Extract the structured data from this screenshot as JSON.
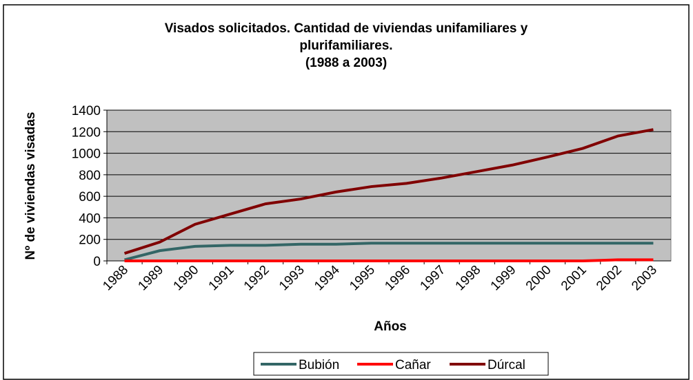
{
  "chart_data": {
    "type": "line",
    "title": [
      "Visados solicitados. Cantidad de viviendas unifamiliares y",
      "plurifamiliares.",
      "(1988 a 2003)"
    ],
    "y_label": "Nº de viviendas visadas",
    "x_label": "Años",
    "categories": [
      "1988",
      "1989",
      "1990",
      "1991",
      "1992",
      "1993",
      "1994",
      "1995",
      "1996",
      "1997",
      "1998",
      "1999",
      "2000",
      "2001",
      "2002",
      "2003"
    ],
    "series": [
      {
        "name": "Bubión",
        "color": "#336666",
        "values": [
          10,
          95,
          135,
          145,
          145,
          155,
          155,
          165,
          165,
          165,
          165,
          165,
          165,
          165,
          165,
          165
        ]
      },
      {
        "name": "Cañar",
        "color": "#ff0000",
        "values": [
          0,
          0,
          0,
          0,
          0,
          0,
          0,
          0,
          0,
          0,
          0,
          0,
          0,
          0,
          10,
          10
        ]
      },
      {
        "name": "Dúrcal",
        "color": "#800000",
        "values": [
          70,
          175,
          340,
          435,
          530,
          575,
          640,
          690,
          720,
          770,
          830,
          890,
          965,
          1045,
          1160,
          1220
        ]
      }
    ],
    "ylim": [
      0,
      1400
    ],
    "yticks": [
      0,
      200,
      400,
      600,
      800,
      1000,
      1200,
      1400
    ],
    "grid": true,
    "legend": "bottom"
  }
}
